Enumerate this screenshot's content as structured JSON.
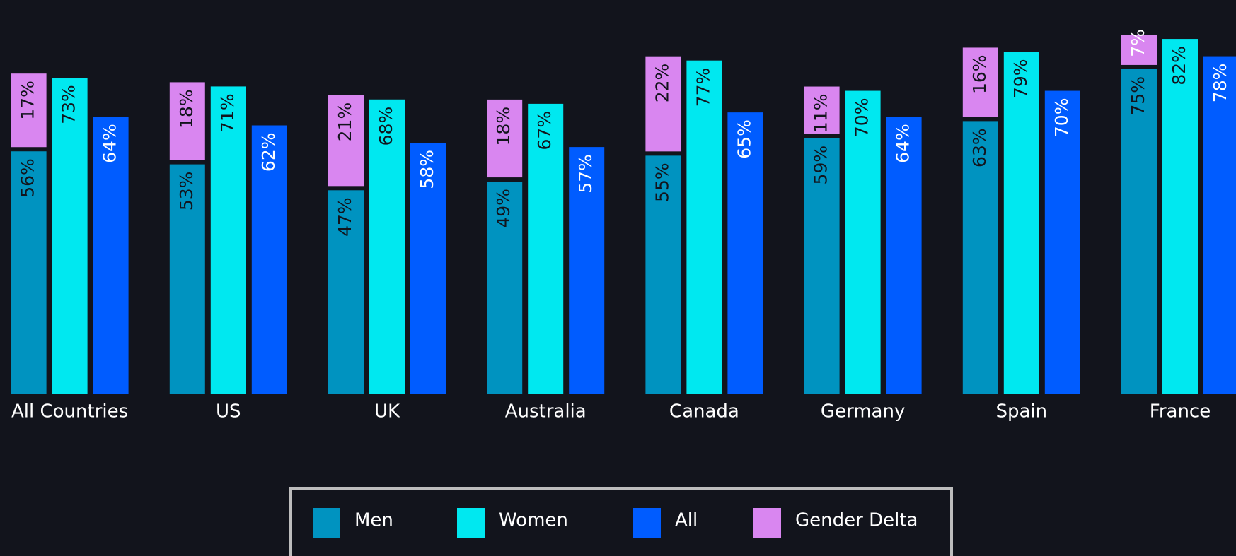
{
  "chart_data": {
    "type": "bar",
    "categories": [
      "All Countries",
      "US",
      "UK",
      "Australia",
      "Canada",
      "Germany",
      "Spain",
      "France"
    ],
    "series": [
      {
        "name": "Men",
        "color": "#0093c0",
        "values": [
          56,
          53,
          47,
          49,
          55,
          59,
          63,
          75
        ],
        "value_labels": [
          "56%",
          "53%",
          "47%",
          "49%",
          "55%",
          "59%",
          "63%",
          "75%"
        ]
      },
      {
        "name": "Women",
        "color": "#00e8f0",
        "values": [
          73,
          71,
          68,
          67,
          77,
          70,
          79,
          82
        ],
        "value_labels": [
          "73%",
          "71%",
          "68%",
          "67%",
          "77%",
          "70%",
          "79%",
          "82%"
        ]
      },
      {
        "name": "All",
        "color": "#005cff",
        "values": [
          64,
          62,
          58,
          57,
          65,
          64,
          70,
          78
        ],
        "value_labels": [
          "64%",
          "62%",
          "58%",
          "57%",
          "65%",
          "64%",
          "70%",
          "78%"
        ]
      },
      {
        "name": "Gender Delta",
        "color": "#d986f0",
        "values": [
          17,
          18,
          21,
          18,
          22,
          11,
          16,
          7
        ],
        "value_labels": [
          "17%",
          "18%",
          "21%",
          "18%",
          "22%",
          "11%",
          "16%",
          "7%"
        ]
      }
    ],
    "ylim": [
      0,
      91
    ],
    "legend": "bottom"
  }
}
